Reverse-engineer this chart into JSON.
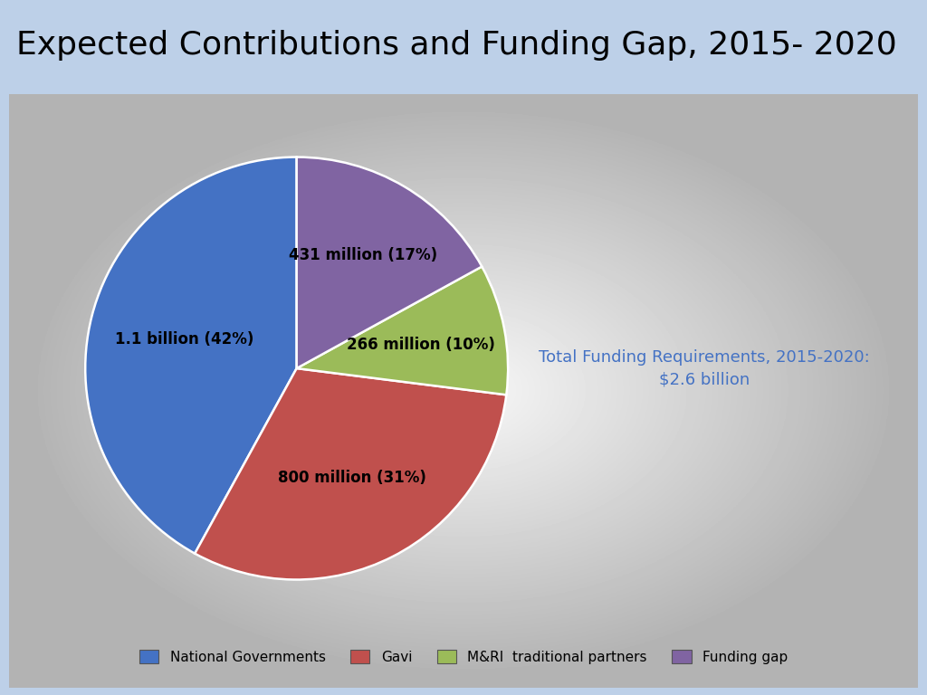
{
  "title": "Expected Contributions and Funding Gap, 2015- 2020",
  "title_bg_color": "#bdd0e8",
  "slices": [
    {
      "label": "National Governments",
      "value": 42,
      "amount": "1.1 billion (42%)",
      "color": "#4472C4"
    },
    {
      "label": "Gavi",
      "value": 31,
      "amount": "800 million (31%)",
      "color": "#C0504D"
    },
    {
      "label": "M&RI  traditional partners",
      "value": 10,
      "amount": "266 million (10%)",
      "color": "#9BBB59"
    },
    {
      "label": "Funding gap",
      "value": 17,
      "amount": "431 million (17%)",
      "color": "#8064A2"
    }
  ],
  "annotation_text": "Total Funding Requirements, 2015-2020:\n$2.6 billion",
  "annotation_color": "#4472C4",
  "startangle": 90,
  "label_fontsize": 12,
  "title_fontsize": 26
}
